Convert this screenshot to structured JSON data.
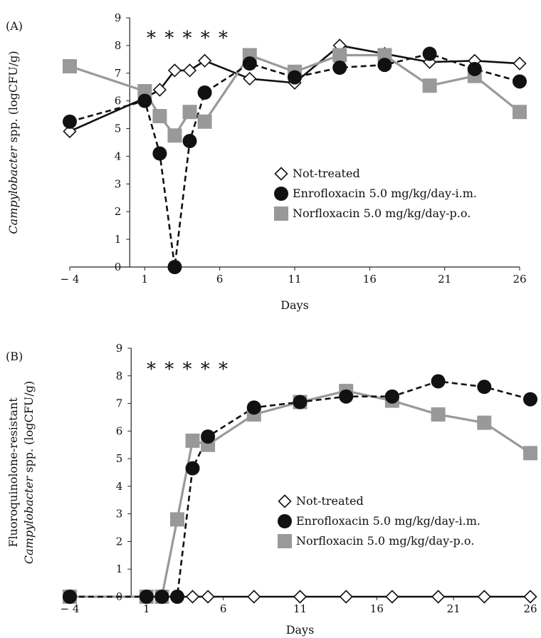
{
  "chart_data": [
    {
      "type": "line",
      "panel_label": "(A)",
      "annotation": "* * * * *",
      "xlabel": "Days",
      "ylabel_prefix": "",
      "ylabel_italic": "Campylobacter",
      "ylabel_suffix": " spp. (logCFU/g)",
      "xlim": [
        -4,
        26
      ],
      "ylim": [
        0,
        9
      ],
      "xticks": [
        -4,
        1,
        6,
        11,
        16,
        21,
        26
      ],
      "xtick_labels": [
        "− 4",
        "1",
        "6",
        "11",
        "16",
        "21",
        "26"
      ],
      "yticks": [
        0,
        1,
        2,
        3,
        4,
        5,
        6,
        7,
        8,
        9
      ],
      "legend_position": "center-right",
      "series": [
        {
          "name": "Not-treated",
          "marker": "diamond-open",
          "line": "solid",
          "color": "#111111",
          "x": [
            -4,
            1,
            2,
            3,
            4,
            5,
            8,
            11,
            14,
            17,
            20,
            23,
            26
          ],
          "y": [
            4.9,
            6.1,
            6.4,
            7.1,
            7.1,
            7.45,
            6.8,
            6.65,
            8.0,
            7.7,
            7.4,
            7.45,
            7.35
          ]
        },
        {
          "name": "Enrofloxacin 5.0 mg/kg/day-i.m.",
          "marker": "circle-filled",
          "line": "dashed",
          "color": "#111111",
          "x": [
            -4,
            1,
            2,
            3,
            4,
            5,
            8,
            11,
            14,
            17,
            20,
            23,
            26
          ],
          "y": [
            5.25,
            6.0,
            4.1,
            0.0,
            4.55,
            6.3,
            7.35,
            6.85,
            7.2,
            7.3,
            7.7,
            7.15,
            6.7
          ]
        },
        {
          "name": "Norfloxacin 5.0 mg/kg/day-p.o.",
          "marker": "square-filled",
          "line": "solid",
          "color": "#999999",
          "x": [
            -4,
            1,
            2,
            3,
            4,
            5,
            8,
            11,
            14,
            17,
            20,
            23,
            26
          ],
          "y": [
            7.25,
            6.35,
            5.45,
            4.75,
            5.6,
            5.25,
            7.65,
            7.05,
            7.65,
            7.65,
            6.55,
            6.9,
            5.6
          ]
        }
      ]
    },
    {
      "type": "line",
      "panel_label": "(B)",
      "annotation": "* * * * *",
      "xlabel": "Days",
      "ylabel_line1": "Fluoroquinolone-resistant",
      "ylabel_prefix": "",
      "ylabel_italic": "Campylobacter",
      "ylabel_suffix": " spp. (logCFU/g)",
      "xlim": [
        -4,
        26
      ],
      "ylim": [
        0,
        9
      ],
      "xticks": [
        -4,
        1,
        6,
        11,
        16,
        21,
        26
      ],
      "xtick_labels": [
        "− 4",
        "1",
        "6",
        "11",
        "16",
        "21",
        "26"
      ],
      "yticks": [
        0,
        1,
        2,
        3,
        4,
        5,
        6,
        7,
        8,
        9
      ],
      "legend_position": "center-right",
      "series": [
        {
          "name": "Not-treated",
          "marker": "diamond-open",
          "line": "solid",
          "color": "#111111",
          "x": [
            -4,
            1,
            2,
            3,
            4,
            5,
            8,
            11,
            14,
            17,
            20,
            23,
            26
          ],
          "y": [
            0,
            0,
            0,
            0,
            0,
            0,
            0,
            0,
            0,
            0,
            0,
            0,
            0
          ]
        },
        {
          "name": "Enrofloxacin 5.0 mg/kg/day-i.m.",
          "marker": "circle-filled",
          "line": "dashed",
          "color": "#111111",
          "x": [
            -4,
            1,
            2,
            3,
            4,
            5,
            8,
            11,
            14,
            17,
            20,
            23,
            26
          ],
          "y": [
            0,
            0,
            0,
            0,
            4.65,
            5.8,
            6.85,
            7.05,
            7.25,
            7.25,
            7.8,
            7.6,
            7.15
          ]
        },
        {
          "name": "Norfloxacin 5.0 mg/kg/day-p.o.",
          "marker": "square-filled",
          "line": "solid",
          "color": "#999999",
          "x": [
            -4,
            1,
            2,
            3,
            4,
            5,
            8,
            11,
            14,
            17,
            20,
            23,
            26
          ],
          "y": [
            0,
            0,
            0,
            2.8,
            5.65,
            5.5,
            6.6,
            7.05,
            7.45,
            7.1,
            6.6,
            6.3,
            5.2
          ]
        }
      ]
    }
  ]
}
